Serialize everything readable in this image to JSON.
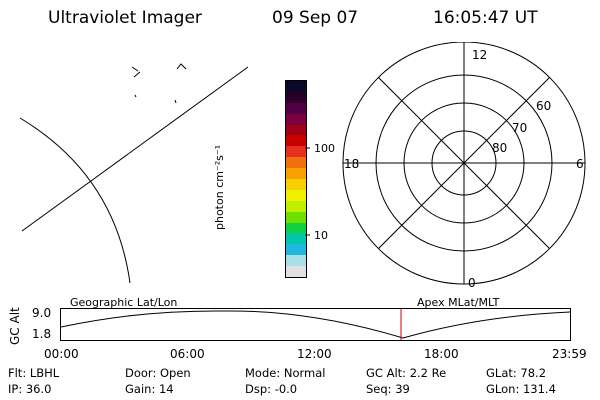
{
  "header": {
    "instrument": "Ultraviolet Imager",
    "date": "09 Sep 07",
    "time": "16:05:47 UT"
  },
  "colorbar": {
    "label": "photon cm⁻²s⁻¹",
    "ticks": [
      "100",
      "10"
    ],
    "colors": [
      "#0a0a28",
      "#280028",
      "#520044",
      "#7a0040",
      "#a00018",
      "#c80000",
      "#e83020",
      "#f07010",
      "#f8a000",
      "#f8d000",
      "#f0f000",
      "#c0f000",
      "#70e000",
      "#10d040",
      "#00c8a8",
      "#20b8e0",
      "#a8e0e8",
      "#e0e0e0"
    ]
  },
  "polar": {
    "mlt_labels": [
      "12",
      "18",
      "6",
      "0"
    ],
    "lat_labels": [
      "60",
      "70",
      "80"
    ]
  },
  "timeline": {
    "label_left": "Geographic Lat/Lon",
    "label_right": "Apex MLat/MLT",
    "axis_title": "GC Alt",
    "y_max": "9.0",
    "y_min": "1.8",
    "x_ticks": [
      "00:00",
      "06:00",
      "12:00",
      "18:00",
      "23:59"
    ],
    "marker_color": "#d00000"
  },
  "info": {
    "row1": [
      {
        "label": "Flt:",
        "value": "LBHL"
      },
      {
        "label": "Door:",
        "value": "Open"
      },
      {
        "label": "Mode:",
        "value": "Normal"
      },
      {
        "label": "GC Alt:",
        "value": "2.2 Re"
      },
      {
        "label": "GLat:",
        "value": "78.2"
      }
    ],
    "row2": [
      {
        "label": "IP:",
        "value": "36.0"
      },
      {
        "label": "Gain:",
        "value": "14"
      },
      {
        "label": "Dsp:",
        "value": "-0.0"
      },
      {
        "label": "Seq:",
        "value": "39"
      },
      {
        "label": "GLon:",
        "value": "131.4"
      }
    ]
  }
}
